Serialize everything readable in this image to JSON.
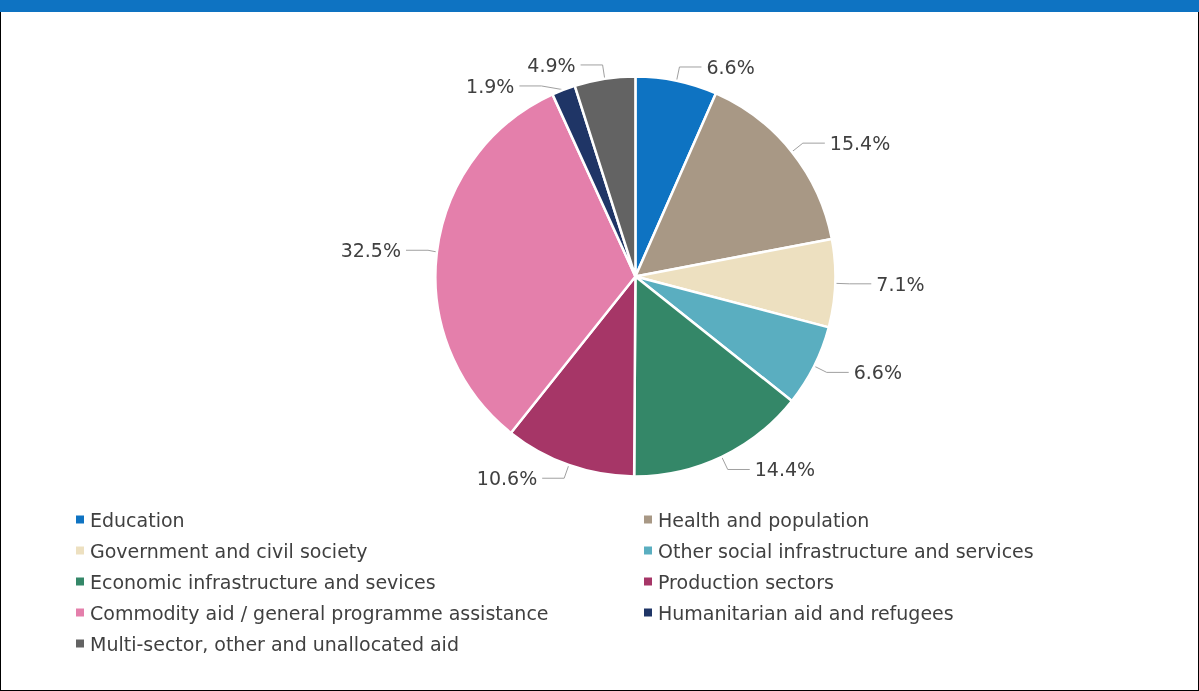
{
  "chart_data": {
    "type": "pie",
    "categories": [
      "Education",
      "Health and population",
      "Government and civil society",
      "Other social infrastructure and services",
      "Economic infrastructure and sevices",
      "Production sectors",
      "Commodity aid / general programme assistance",
      "Humanitarian aid and refugees",
      "Multi-sector, other and unallocated aid"
    ],
    "values": [
      6.6,
      15.4,
      7.1,
      6.6,
      14.4,
      10.6,
      32.5,
      1.9,
      4.9
    ],
    "colors": [
      "#0e73c2",
      "#a89885",
      "#ede0c0",
      "#5aaec0",
      "#348768",
      "#a63667",
      "#e47fab",
      "#1f3566",
      "#636363"
    ],
    "value_labels": [
      "6.6%",
      "15.4%",
      "7.1%",
      "6.6%",
      "14.4%",
      "10.6%",
      "32.5%",
      "1.9%",
      "4.9%"
    ],
    "legend": "bottom"
  }
}
